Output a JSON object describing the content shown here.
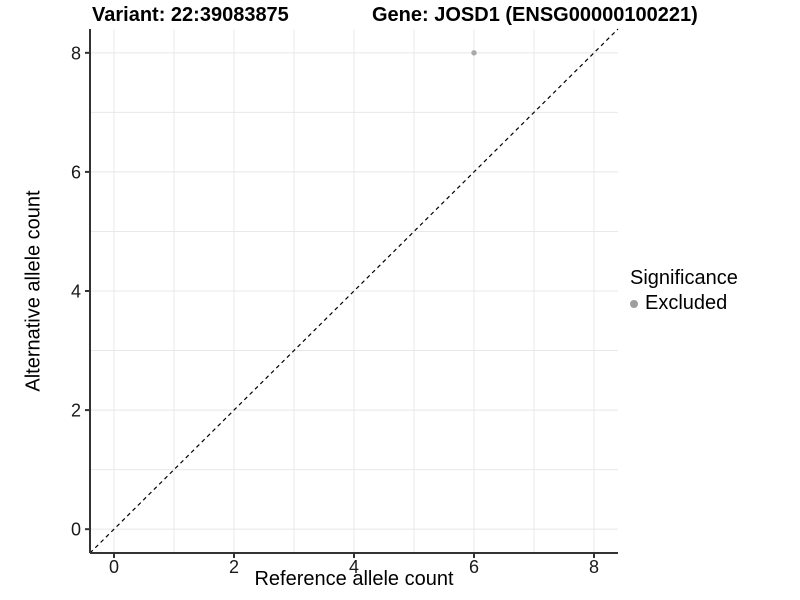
{
  "header": {
    "variant_title": "Variant: 22:39083875",
    "gene_title": "Gene: JOSD1 (ENSG00000100221)"
  },
  "legend": {
    "title": "Significance",
    "items": [
      {
        "label": "Excluded",
        "color": "#9e9e9e"
      }
    ]
  },
  "chart_data": {
    "type": "scatter",
    "title": "Variant: 22:39083875   Gene: JOSD1 (ENSG00000100221)",
    "xlabel": "Reference allele count",
    "ylabel": "Alternative allele count",
    "xlim": [
      -0.4,
      8.4
    ],
    "ylim": [
      -0.4,
      8.4
    ],
    "x_ticks": [
      0,
      2,
      4,
      6,
      8
    ],
    "y_ticks": [
      0,
      2,
      4,
      6,
      8
    ],
    "grid_values": [
      0,
      1,
      2,
      3,
      4,
      5,
      6,
      7,
      8
    ],
    "grid": "on",
    "legend_position": "right",
    "series": [
      {
        "name": "Excluded",
        "points": [
          {
            "x": 6,
            "y": 8
          }
        ],
        "color": "#aaaaaa"
      }
    ],
    "reference_line": {
      "type": "identity",
      "style": "dashed",
      "from": [
        -0.4,
        -0.4
      ],
      "to": [
        8.4,
        8.4
      ],
      "color": "#000000"
    },
    "colors": {
      "gridline": "#e8e8e8",
      "axis_line": "#333333",
      "tick_label": "#1a1a1a",
      "background": "#ffffff"
    }
  }
}
